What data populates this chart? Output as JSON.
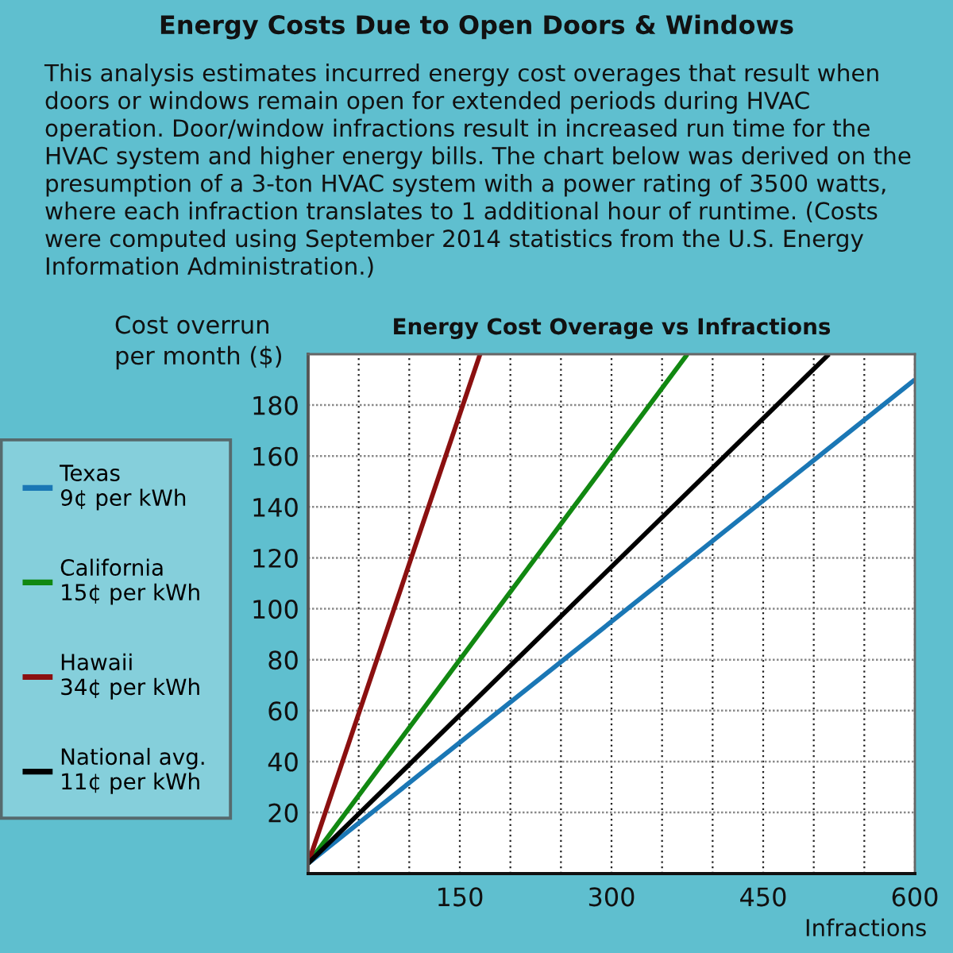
{
  "chart_data": {
    "type": "line",
    "title": "Energy Costs Due to Open Doors & Windows",
    "subtitle": "Energy Cost Overage vs Infractions",
    "annotations": [
      "This analysis estimates incurred energy cost overages that result when\ndoors or windows remain open for extended periods during HVAC\noperation. Door/window infractions result in increased run time for the\nHVAC system and higher energy bills. The chart below was derived on the\npresumption of a 3-ton HVAC system with a power rating of 3500 watts,\nwhere each infraction translates to 1 additional hour of runtime. (Costs\nwere computed using September 2014 statistics from the U.S. Energy\nInformation Administration.)"
    ],
    "xlabel": "Infractions",
    "ylabel": "Cost overrun\nper month ($)",
    "series": [
      {
        "name": "Texas\n9¢ per kWh",
        "color": "#1a77b5",
        "x": [
          0,
          600
        ],
        "values": [
          0,
          190
        ]
      },
      {
        "name": "California\n15¢ per kWh",
        "color": "#118811",
        "x": [
          0,
          375
        ],
        "values": [
          0,
          200
        ]
      },
      {
        "name": "Hawaii\n34¢ per kWh",
        "color": "#8b1010",
        "x": [
          0,
          170
        ],
        "values": [
          0,
          200
        ]
      },
      {
        "name": "National avg.\n11¢ per kWh",
        "color": "#000000",
        "x": [
          0,
          515
        ],
        "values": [
          0,
          200
        ]
      }
    ],
    "xlim": [
      0,
      600
    ],
    "xticks": [
      {
        "value": 50,
        "label": null
      },
      {
        "value": 100,
        "label": null
      },
      150,
      {
        "value": 200,
        "label": null
      },
      {
        "value": 250,
        "label": null
      },
      300,
      {
        "value": 350,
        "label": null
      },
      {
        "value": 400,
        "label": null
      },
      450,
      {
        "value": 500,
        "label": null
      },
      {
        "value": 550,
        "label": null
      },
      600
    ],
    "ylim": [
      -4,
      200
    ],
    "yticks": [
      20,
      40,
      60,
      80,
      100,
      120,
      140,
      160,
      180
    ],
    "grid": true,
    "legend": "left"
  }
}
